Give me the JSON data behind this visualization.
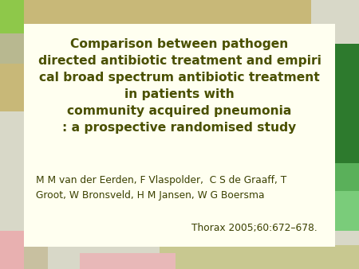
{
  "title_lines": [
    "Comparison between pathogen",
    "directed antibiotic treatment and empiri",
    "cal broad spectrum antibiotic treatment",
    "in patients with",
    "community acquired pneumonia",
    ": a prospective randomised study"
  ],
  "authors_line1": "M M van der Eerden, F Vlaspolder,  C S de Graaff, T",
  "authors_line2": "Groot, W Bronsveld, H M Jansen, W G Boersma",
  "journal": "Thorax 2005;60:672–678.",
  "bg_main": "#fffff0",
  "title_color": "#4a5000",
  "text_color": "#3a4000",
  "fig_bg": "#d8d8c8",
  "deco": {
    "tl_green": "#8ec84a",
    "tl_tan": "#b8b890",
    "tl_beige": "#c8b878",
    "tr_tan": "#c8b878",
    "tr_gray": "#d8d8c8",
    "r_dark_green": "#2d7a2d",
    "r_mid_green": "#5ab05a",
    "r_light_green": "#7acc7a",
    "br_tan": "#c8c890",
    "br_pink": "#e8b8b8",
    "bl_pink": "#e8b0b0",
    "bl_tan": "#c8c0a0"
  }
}
